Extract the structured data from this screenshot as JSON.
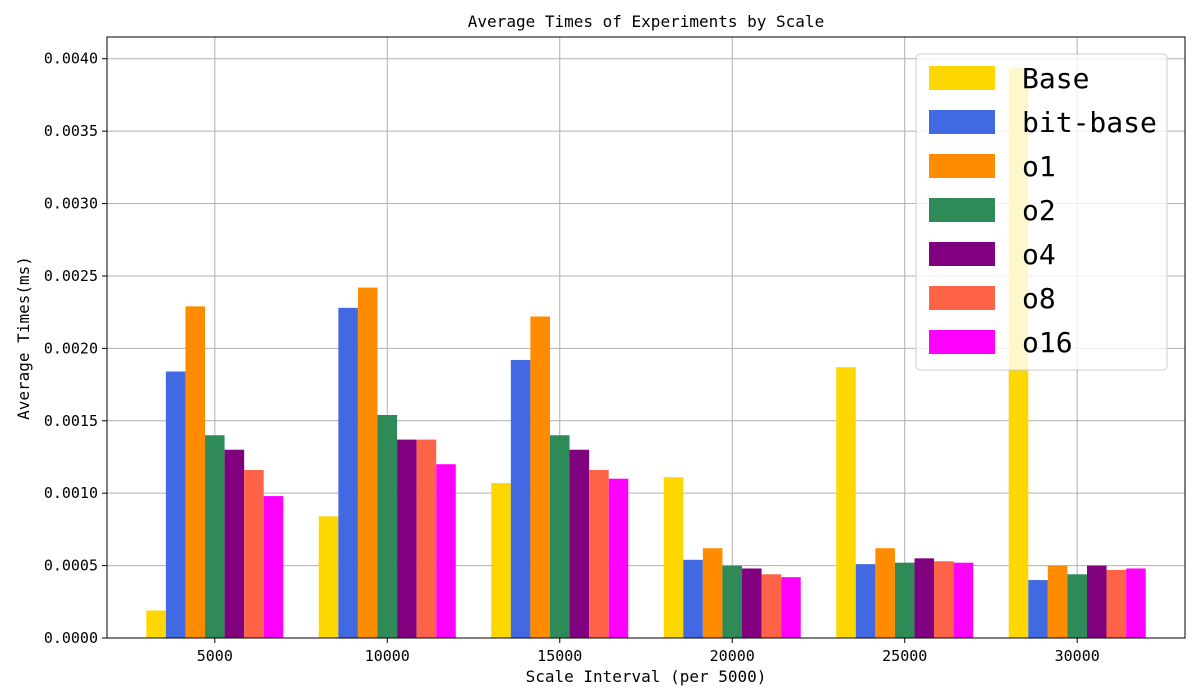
{
  "chart_data": {
    "type": "bar",
    "title": "Average Times of Experiments by Scale",
    "xlabel": "Scale Interval (per 5000)",
    "ylabel": "Average Times(ms)",
    "categories": [
      "5000",
      "10000",
      "15000",
      "20000",
      "25000",
      "30000"
    ],
    "ylim": [
      0,
      0.00415
    ],
    "yticks": [
      0.0,
      0.0005,
      0.001,
      0.0015,
      0.002,
      0.0025,
      0.003,
      0.0035,
      0.004
    ],
    "ytick_labels": [
      "0.0000",
      "0.0005",
      "0.0010",
      "0.0015",
      "0.0020",
      "0.0025",
      "0.0030",
      "0.0035",
      "0.0040"
    ],
    "grid": true,
    "legend_position": "top-right",
    "series": [
      {
        "name": "Base",
        "color": "#FFD700",
        "values": [
          0.00019,
          0.00084,
          0.00107,
          0.00111,
          0.00187,
          0.00394
        ]
      },
      {
        "name": "bit-base",
        "color": "#4169E1",
        "values": [
          0.00184,
          0.00228,
          0.00192,
          0.00054,
          0.00051,
          0.0004
        ]
      },
      {
        "name": "o1",
        "color": "#FF8C00",
        "values": [
          0.00229,
          0.00242,
          0.00222,
          0.00062,
          0.00062,
          0.0005
        ]
      },
      {
        "name": "o2",
        "color": "#2E8B57",
        "values": [
          0.0014,
          0.00154,
          0.0014,
          0.0005,
          0.00052,
          0.00044
        ]
      },
      {
        "name": "o4",
        "color": "#800080",
        "values": [
          0.0013,
          0.00137,
          0.0013,
          0.00048,
          0.00055,
          0.0005
        ]
      },
      {
        "name": "o8",
        "color": "#FF6347",
        "values": [
          0.00116,
          0.00137,
          0.00116,
          0.00044,
          0.00053,
          0.00047
        ]
      },
      {
        "name": "o16",
        "color": "#FF00FF",
        "values": [
          0.00098,
          0.0012,
          0.0011,
          0.00042,
          0.00052,
          0.00048
        ]
      }
    ]
  }
}
